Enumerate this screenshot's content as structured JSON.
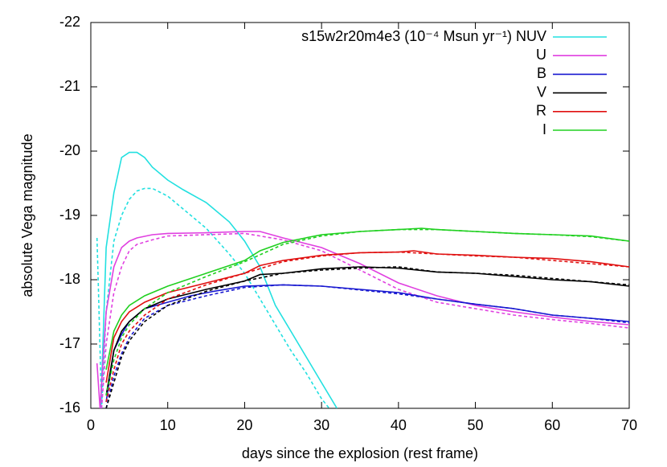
{
  "chart_data": {
    "type": "line",
    "xlabel": "days since the explosion (rest frame)",
    "ylabel": "absolute Vega magnitude",
    "xlim": [
      0,
      70
    ],
    "xticks": [
      0,
      10,
      20,
      30,
      40,
      50,
      60,
      70
    ],
    "ylim": [
      -16,
      -22
    ],
    "yticks": [
      -16,
      -17,
      -18,
      -19,
      -20,
      -21,
      -22
    ],
    "grid": false,
    "legend": "top-right",
    "series": [
      {
        "name": "s15w2r20m4e3 (10⁻⁴ Msun yr⁻¹) NUV",
        "color": "#22e0e0",
        "dash": false,
        "x": [
          1.3,
          2,
          3,
          4,
          5,
          6,
          7,
          8,
          10,
          12,
          15,
          18,
          20,
          22,
          24,
          26,
          28,
          30,
          32
        ],
        "values": [
          -16,
          -18.5,
          -19.35,
          -19.9,
          -19.98,
          -19.98,
          -19.9,
          -19.75,
          -19.55,
          -19.4,
          -19.2,
          -18.9,
          -18.6,
          -18.2,
          -17.6,
          -17.2,
          -16.8,
          -16.4,
          -16.0
        ]
      },
      {
        "color": "#22e0e0",
        "dash": true,
        "x": [
          0.8,
          1.0,
          1.4,
          2,
          3,
          4,
          5,
          6,
          7,
          8,
          10,
          12,
          15,
          18,
          20,
          22,
          24,
          26,
          28,
          30,
          31
        ],
        "values": [
          -18.65,
          -17.8,
          -16.0,
          -17.5,
          -18.6,
          -19.0,
          -19.25,
          -19.38,
          -19.42,
          -19.42,
          -19.3,
          -19.1,
          -18.8,
          -18.4,
          -18.1,
          -17.7,
          -17.3,
          -16.9,
          -16.55,
          -16.15,
          -16.0
        ]
      },
      {
        "name": "U",
        "color": "#e040e0",
        "dash": false,
        "x": [
          0.8,
          1.2,
          2,
          3,
          4,
          5,
          6,
          8,
          10,
          15,
          20,
          22,
          25,
          30,
          35,
          40,
          45,
          50,
          55,
          60,
          65,
          70
        ],
        "values": [
          -16.7,
          -16.0,
          -17.5,
          -18.2,
          -18.5,
          -18.6,
          -18.65,
          -18.7,
          -18.72,
          -18.73,
          -18.75,
          -18.75,
          -18.65,
          -18.5,
          -18.25,
          -17.95,
          -17.75,
          -17.6,
          -17.5,
          -17.42,
          -17.35,
          -17.3
        ]
      },
      {
        "color": "#e040e0",
        "dash": true,
        "x": [
          1.4,
          2,
          3,
          4,
          5,
          6,
          8,
          10,
          15,
          20,
          25,
          30,
          35,
          40,
          45,
          50,
          55,
          60,
          65,
          70
        ],
        "values": [
          -16.0,
          -17.0,
          -17.8,
          -18.2,
          -18.45,
          -18.55,
          -18.62,
          -18.68,
          -18.7,
          -18.72,
          -18.62,
          -18.45,
          -18.15,
          -17.85,
          -17.65,
          -17.55,
          -17.45,
          -17.38,
          -17.32,
          -17.25
        ]
      },
      {
        "name": "B",
        "color": "#1818d0",
        "dash": false,
        "x": [
          2,
          3,
          4,
          5,
          7,
          10,
          13,
          16,
          20,
          25,
          30,
          35,
          40,
          45,
          50,
          55,
          60,
          65,
          70
        ],
        "values": [
          -16.1,
          -16.9,
          -17.15,
          -17.35,
          -17.55,
          -17.65,
          -17.75,
          -17.82,
          -17.9,
          -17.92,
          -17.9,
          -17.85,
          -17.8,
          -17.7,
          -17.62,
          -17.55,
          -17.45,
          -17.4,
          -17.35
        ]
      },
      {
        "color": "#1818d0",
        "dash": true,
        "x": [
          2,
          3,
          4,
          5,
          7,
          10,
          15,
          20,
          25,
          30,
          35,
          40,
          45,
          50,
          55,
          60,
          65,
          70
        ],
        "values": [
          -16.0,
          -16.5,
          -16.85,
          -17.1,
          -17.4,
          -17.6,
          -17.75,
          -17.88,
          -17.92,
          -17.9,
          -17.84,
          -17.78,
          -17.7,
          -17.62,
          -17.55,
          -17.45,
          -17.4,
          -17.33
        ]
      },
      {
        "name": "V",
        "color": "#000000",
        "dash": false,
        "x": [
          2,
          3,
          4,
          5,
          7,
          10,
          15,
          20,
          22,
          25,
          30,
          35,
          40,
          45,
          50,
          55,
          60,
          65,
          70
        ],
        "values": [
          -16.2,
          -16.9,
          -17.2,
          -17.35,
          -17.55,
          -17.7,
          -17.85,
          -17.98,
          -18.08,
          -18.1,
          -18.17,
          -18.2,
          -18.18,
          -18.12,
          -18.1,
          -18.05,
          -18.0,
          -17.97,
          -17.9
        ]
      },
      {
        "color": "#000000",
        "dash": true,
        "x": [
          2,
          3,
          4,
          5,
          7,
          10,
          15,
          20,
          25,
          30,
          35,
          40,
          45,
          50,
          55,
          60,
          65,
          70
        ],
        "values": [
          -16.0,
          -16.4,
          -16.8,
          -17.05,
          -17.35,
          -17.6,
          -17.82,
          -17.98,
          -18.1,
          -18.15,
          -18.18,
          -18.2,
          -18.12,
          -18.1,
          -18.07,
          -18.02,
          -17.97,
          -17.92
        ]
      },
      {
        "name": "R",
        "color": "#e01010",
        "dash": false,
        "x": [
          2,
          3,
          4,
          5,
          7,
          10,
          15,
          20,
          22,
          25,
          30,
          35,
          40,
          42,
          45,
          50,
          55,
          60,
          65,
          70
        ],
        "values": [
          -16.4,
          -17.1,
          -17.35,
          -17.5,
          -17.65,
          -17.8,
          -17.95,
          -18.1,
          -18.22,
          -18.3,
          -18.38,
          -18.42,
          -18.43,
          -18.45,
          -18.4,
          -18.38,
          -18.35,
          -18.33,
          -18.28,
          -18.2
        ]
      },
      {
        "color": "#e01010",
        "dash": true,
        "x": [
          2,
          3,
          4,
          5,
          7,
          10,
          15,
          20,
          25,
          30,
          35,
          40,
          45,
          50,
          55,
          60,
          65,
          70
        ],
        "values": [
          -16.1,
          -16.6,
          -17.0,
          -17.2,
          -17.45,
          -17.7,
          -17.92,
          -18.1,
          -18.28,
          -18.37,
          -18.42,
          -18.43,
          -18.4,
          -18.37,
          -18.35,
          -18.3,
          -18.25,
          -18.2
        ]
      },
      {
        "name": "I",
        "color": "#20d020",
        "dash": false,
        "x": [
          2,
          3,
          4,
          5,
          7,
          10,
          15,
          20,
          22,
          25,
          30,
          35,
          40,
          43,
          45,
          50,
          55,
          60,
          65,
          70
        ],
        "values": [
          -16.6,
          -17.2,
          -17.45,
          -17.6,
          -17.75,
          -17.9,
          -18.1,
          -18.3,
          -18.45,
          -18.58,
          -18.7,
          -18.75,
          -18.78,
          -18.8,
          -18.78,
          -18.75,
          -18.72,
          -18.7,
          -18.68,
          -18.6
        ]
      },
      {
        "color": "#20d020",
        "dash": true,
        "x": [
          2,
          3,
          4,
          5,
          7,
          10,
          15,
          20,
          25,
          30,
          35,
          40,
          45,
          50,
          55,
          60,
          65,
          70
        ],
        "values": [
          -16.2,
          -16.75,
          -17.1,
          -17.3,
          -17.55,
          -17.8,
          -18.05,
          -18.28,
          -18.55,
          -18.68,
          -18.75,
          -18.78,
          -18.78,
          -18.75,
          -18.72,
          -18.7,
          -18.67,
          -18.6
        ]
      }
    ]
  }
}
